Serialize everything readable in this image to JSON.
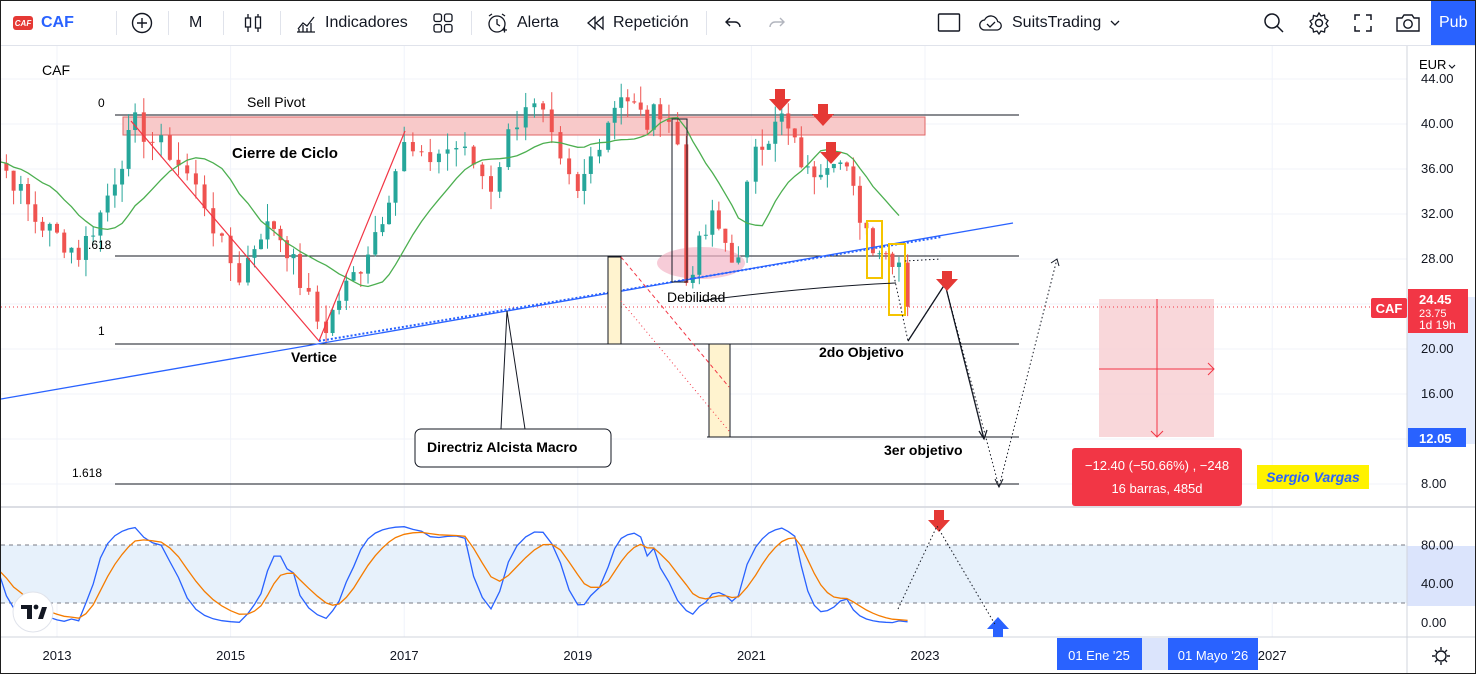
{
  "toolbar": {
    "logo_text": "CAF",
    "symbol": "CAF",
    "interval": "M",
    "indicators_label": "Indicadores",
    "alert_label": "Alerta",
    "replay_label": "Repetición",
    "layout_name": "SuitsTrading",
    "publish_label": "Pub",
    "icons": [
      "add-symbol-icon",
      "candles-icon",
      "indicators-icon",
      "templates-icon",
      "alert-icon",
      "replay-icon",
      "undo-icon",
      "redo-icon",
      "fullscreen-icon",
      "cloud-icon",
      "search-icon",
      "settings-icon",
      "expand-icon",
      "camera-icon"
    ]
  },
  "chart_data": {
    "type": "candlestick",
    "symbol": "CAF",
    "currency": "EUR",
    "x_ticks": [
      "2013",
      "2015",
      "2017",
      "2019",
      "2021",
      "2023",
      "2027"
    ],
    "y_ticks": [
      "44.00",
      "40.00",
      "36.00",
      "32.00",
      "28.00",
      "24.00",
      "20.00",
      "16.00",
      "12.00",
      "8.00"
    ],
    "ylim": [
      6.5,
      45.5
    ],
    "last_price": "24.45",
    "last_price_partial": "23.75",
    "countdown": "1d 19h",
    "target_price": "12.05",
    "closes": [
      [
        2012.0,
        36.5
      ],
      [
        2012.25,
        37.5
      ],
      [
        2012.5,
        35.0
      ],
      [
        2012.75,
        31.5
      ],
      [
        2013.0,
        30.0
      ],
      [
        2013.25,
        28.5
      ],
      [
        2013.5,
        32.0
      ],
      [
        2013.75,
        37.0
      ],
      [
        2013.9,
        40.0
      ],
      [
        2014.1,
        38.5
      ],
      [
        2014.3,
        37.5
      ],
      [
        2014.5,
        35.5
      ],
      [
        2014.7,
        33.0
      ],
      [
        2014.9,
        29.0
      ],
      [
        2015.1,
        26.5
      ],
      [
        2015.2,
        28.0
      ],
      [
        2015.35,
        30.5
      ],
      [
        2015.5,
        31.0
      ],
      [
        2015.65,
        29.0
      ],
      [
        2015.8,
        26.0
      ],
      [
        2016.0,
        22.5
      ],
      [
        2016.1,
        22.0
      ],
      [
        2016.25,
        24.5
      ],
      [
        2016.5,
        27.5
      ],
      [
        2016.75,
        32.0
      ],
      [
        2016.9,
        36.0
      ],
      [
        2017.0,
        38.0
      ],
      [
        2017.2,
        36.5
      ],
      [
        2017.4,
        37.5
      ],
      [
        2017.6,
        38.0
      ],
      [
        2017.8,
        36.5
      ],
      [
        2018.0,
        34.5
      ],
      [
        2018.2,
        39.0
      ],
      [
        2018.4,
        42.0
      ],
      [
        2018.6,
        40.5
      ],
      [
        2018.8,
        36.0
      ],
      [
        2019.0,
        33.5
      ],
      [
        2019.15,
        37.0
      ],
      [
        2019.35,
        40.5
      ],
      [
        2019.5,
        43.0
      ],
      [
        2019.65,
        41.5
      ],
      [
        2019.8,
        40.0
      ],
      [
        2019.95,
        41.5
      ],
      [
        2020.05,
        40.5
      ],
      [
        2020.15,
        38.0
      ],
      [
        2020.25,
        26.0
      ],
      [
        2020.4,
        29.0
      ],
      [
        2020.55,
        31.5
      ],
      [
        2020.7,
        29.5
      ],
      [
        2020.85,
        27.5
      ],
      [
        2020.95,
        34.0
      ],
      [
        2021.05,
        38.5
      ],
      [
        2021.2,
        39.0
      ],
      [
        2021.35,
        40.5
      ],
      [
        2021.5,
        38.0
      ],
      [
        2021.65,
        35.5
      ],
      [
        2021.8,
        36.5
      ],
      [
        2021.95,
        37.5
      ],
      [
        2022.1,
        35.5
      ],
      [
        2022.25,
        32.0
      ],
      [
        2022.4,
        29.5
      ],
      [
        2022.55,
        28.5
      ],
      [
        2022.7,
        28.0
      ],
      [
        2022.8,
        23.75
      ]
    ],
    "ma_line": "moving-average",
    "fib_levels": [
      {
        "label": "0",
        "price": 41.0
      },
      {
        "label": ".618",
        "price": 28.4
      },
      {
        "label": "1",
        "price": 20.6
      },
      {
        "label": "1.618",
        "price": 7.9
      }
    ],
    "annotations": {
      "sell_pivot": "Sell Pivot",
      "cycle_close": "Cierre de Ciclo",
      "vertex": "Vertice",
      "weakness": "Debilidad",
      "trendline": "Directriz Alcista Macro",
      "second_target": "2do Objetivo",
      "third_target": "3er objetivo",
      "author": "Sergio Vargas",
      "measure_line1": "−12.40 (−50.66%) , −248",
      "measure_line2": "16 barras, 485d"
    },
    "oscillator": {
      "y_ticks": [
        "80.00",
        "40.00",
        "0.00"
      ],
      "upper_band": 80,
      "lower_band": 20
    },
    "date_labels": [
      "01 Ene '25",
      "01 Mayo '26"
    ],
    "colors": {
      "up": "#26a69a",
      "down": "#ef5350",
      "ma": "#4caf50",
      "trend": "#2962ff",
      "accent": "#2962ff",
      "price_tag": "#f23645"
    }
  }
}
